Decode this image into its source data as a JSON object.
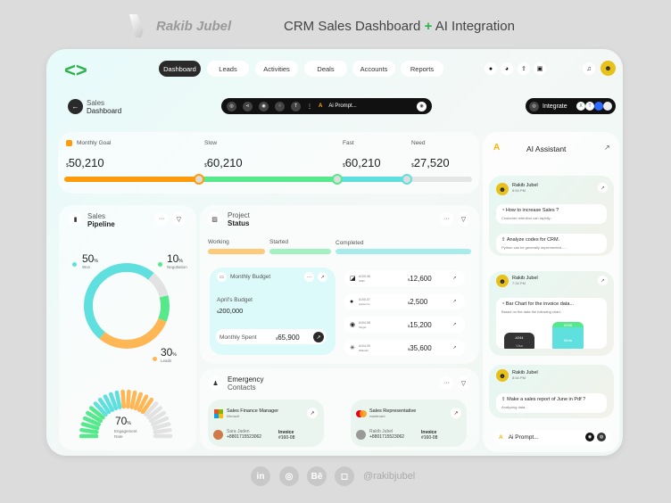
{
  "brand": {
    "name": "Rakib Jubel",
    "headline_a": "CRM Sales Dashboard",
    "headline_plus": "+",
    "headline_b": "AI Integration"
  },
  "nav": [
    {
      "label": "Dashboard",
      "active": true
    },
    {
      "label": "Leads"
    },
    {
      "label": "Activities"
    },
    {
      "label": "Deals"
    },
    {
      "label": "Accounts"
    },
    {
      "label": "Reports"
    }
  ],
  "header": {
    "title_line1": "Sales",
    "title_line2": "Dashboard",
    "prompt_placeholder": "Ai Prompt...",
    "integrate_label": "Integrate"
  },
  "goal": {
    "currency": "$",
    "items": [
      {
        "label": "Monthly Goal",
        "value": "50,210"
      },
      {
        "label": "Slow",
        "value": "60,210"
      },
      {
        "label": "Fast",
        "value": "60,210"
      },
      {
        "label": "Need",
        "value": "27,520"
      }
    ],
    "progress_markers_pct": [
      33,
      67,
      84
    ],
    "colors": [
      "#ff9a0a",
      "#55e98c",
      "#5fe0de",
      "#e5e5e5"
    ]
  },
  "pipeline": {
    "title_line1": "Sales",
    "title_line2": "Pipeline",
    "won": {
      "value": "50",
      "unit": "%",
      "label": "Won"
    },
    "negotiation": {
      "value": "10",
      "unit": "%",
      "label": "Negotiation"
    },
    "leads": {
      "value": "30",
      "unit": "%",
      "label": "Leads"
    },
    "engagement": {
      "value": "70",
      "unit": "%",
      "label_line1": "Engagement",
      "label_line2": "Rate"
    },
    "colors": {
      "won": "#5fe0de",
      "negotiation": "#55e98c",
      "leads": "#ffb655",
      "other": "#e2e2e2"
    }
  },
  "project": {
    "title_line1": "Project",
    "title_line2": "Status",
    "stages": [
      {
        "label": "Working",
        "color": "#ffc97a"
      },
      {
        "label": "Started",
        "color": "#a5f0c0"
      },
      {
        "label": "Completed",
        "color": "#a7ecea"
      }
    ],
    "budget": {
      "title": "Monthly Budget",
      "label": "April's Budget",
      "currency": "$",
      "amount": "200,000",
      "spent_label": "Monthly Spent",
      "spent": "65,900"
    },
    "invoices": [
      {
        "id": "#100-06",
        "company": "AMD",
        "amount": "12,600",
        "icon": "amd-icon"
      },
      {
        "id": "#100-07",
        "company": "Apple Inc.",
        "amount": "2,500",
        "icon": "apple-icon"
      },
      {
        "id": "#104-08",
        "company": "Target",
        "amount": "15,200",
        "icon": "target-icon"
      },
      {
        "id": "#104-09",
        "company": "Walmart",
        "amount": "35,600",
        "icon": "walmart-icon"
      }
    ]
  },
  "contacts": {
    "title_line1": "Emergency",
    "title_line2": "Contacts",
    "items": [
      {
        "role": "Sales Finance Manager",
        "company": "Microsoft",
        "name": "Sara Jaden",
        "phone": "+8801715523062",
        "invoice_label": "Invoice",
        "invoice": "#160-08"
      },
      {
        "role": "Sales Representative",
        "company": "mastercard",
        "name": "Rakib Jubel",
        "phone": "+8801715523062",
        "invoice_label": "Invoice",
        "invoice": "#160-08"
      }
    ]
  },
  "assistant": {
    "title": "AI Assistant",
    "prompt_placeholder": "Ai Prompt...",
    "threads": [
      {
        "user": "Rakib Jubel",
        "time": "8:54 PM",
        "messages": [
          {
            "q": "How to increase Sales ?",
            "a": "Customer retention can rapidly..."
          },
          {
            "q": "Analyze codes for CRM.",
            "a": "Python can be generally implemented......"
          }
        ]
      },
      {
        "user": "Rakib Jubel",
        "time": "7:34 PM",
        "messages": [
          {
            "q": "Bar Chart for the invoice data...",
            "a": "Based on the data  the following chart.."
          }
        ],
        "bars": [
          {
            "id": "#244",
            "label": "Visa"
          },
          {
            "id": "#258",
            "label": "Meta"
          }
        ]
      },
      {
        "user": "Rakib Jubel",
        "time": "8:54 PM",
        "messages": [
          {
            "q": "Make a sales report of June in Pdf ?",
            "a": "Analyzing data..."
          }
        ]
      }
    ]
  },
  "footer": {
    "handle": "@rakibjubel",
    "socials": [
      "in",
      "◎",
      "Bē",
      "◻"
    ]
  }
}
